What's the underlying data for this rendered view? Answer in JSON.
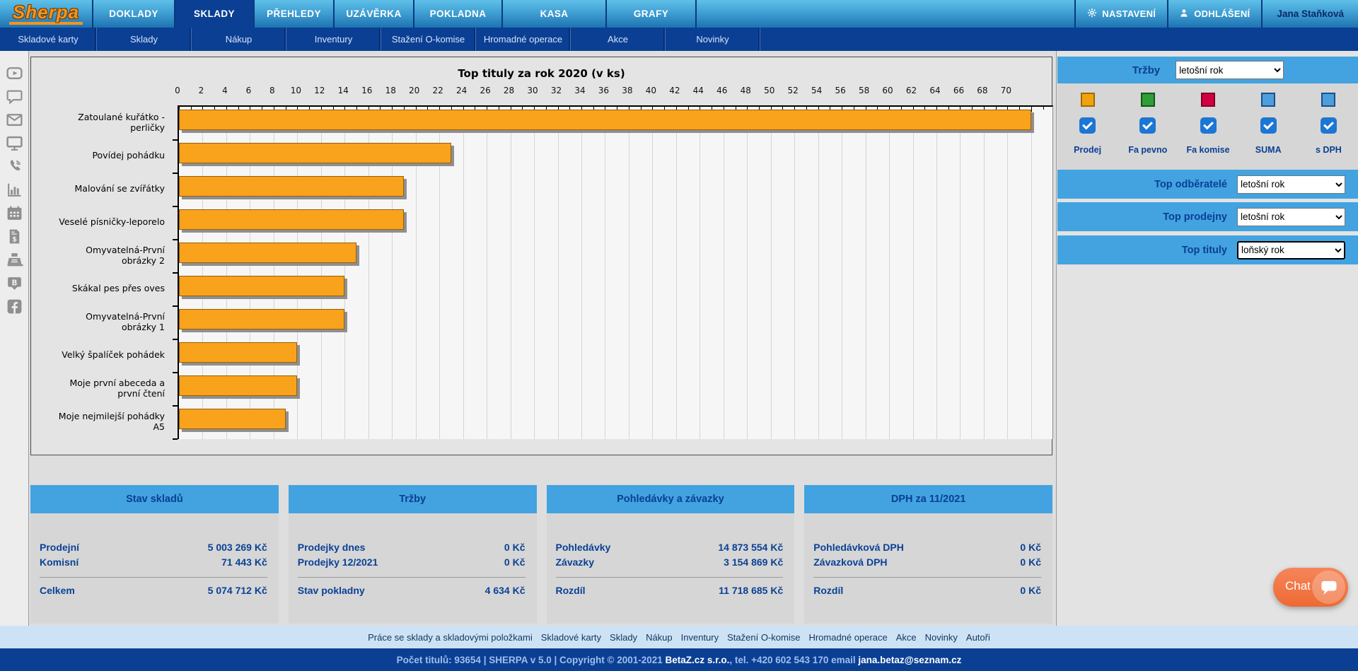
{
  "header": {
    "logo": "Sherpa",
    "tabs": [
      {
        "label": "DOKLADY",
        "active": false
      },
      {
        "label": "SKLADY",
        "active": true
      },
      {
        "label": "PŘEHLEDY",
        "active": false
      },
      {
        "label": "UZÁVĚRKA",
        "active": false
      },
      {
        "label": "POKLADNA",
        "active": false
      },
      {
        "label": "KASA",
        "active": false
      },
      {
        "label": "GRAFY",
        "active": false
      }
    ],
    "actions": {
      "settings": "NASTAVENÍ",
      "logout": "ODHLÁŠENÍ",
      "user": "Jana Staňková"
    }
  },
  "subnav": [
    "Skladové karty",
    "Sklady",
    "Nákup",
    "Inventury",
    "Stažení O-komise",
    "Hromadné operace",
    "Akce",
    "Novinky"
  ],
  "sidebar_icons": [
    "video-icon",
    "comment-icon",
    "mail-icon",
    "monitor-icon",
    "phone-icon",
    "bar-chart-icon",
    "calendar-icon",
    "invoice-icon",
    "cash-register-icon",
    "b-badge-icon",
    "facebook-icon"
  ],
  "chart_data": {
    "type": "bar",
    "orientation": "horizontal",
    "title": "Top tituly za rok 2020 (v ks)",
    "categories": [
      "Zatoulané kuřátko - perličky",
      "Povídej pohádku",
      "Malování se zvířátky",
      "Veselé písničky-leporelo",
      "Omyvatelná-První obrázky 2",
      "Skákal pes přes oves",
      "Omyvatelná-První obrázky 1",
      "Velký špalíček pohádek",
      "Moje první abeceda a první čtení",
      "Moje nejmilejší pohádky A5"
    ],
    "values": [
      72,
      23,
      19,
      19,
      15,
      14,
      14,
      10,
      10,
      9
    ],
    "xlabel": "",
    "ylabel": "",
    "xlim": [
      0,
      73.8
    ],
    "x_tick_step": 2,
    "x_minor_tick_step": 1,
    "x_max_label": 70,
    "grid": true,
    "legend_position": "none",
    "bar_color": "#F9A21B",
    "bar_shadow_color": "#8F8F8F"
  },
  "right_panel": {
    "trzby": {
      "label": "Tržby",
      "selected": "letošní rok"
    },
    "legend": [
      {
        "label": "Prodej",
        "color": "#F2A20E",
        "border": "#9C6A00",
        "checked": true
      },
      {
        "label": "Fa pevno",
        "color": "#2E9E35",
        "border": "#14551A",
        "checked": true
      },
      {
        "label": "Fa komise",
        "color": "#D20041",
        "border": "#7E0026",
        "checked": true
      },
      {
        "label": "SUMA",
        "color": "#4D9EDC",
        "border": "#1B4F8A",
        "checked": true
      },
      {
        "label": "s DPH",
        "color": "#4D9EDC",
        "border": "#1B4F8A",
        "checked": true
      }
    ],
    "checkbox_color": "#1C76D3",
    "dropdowns": [
      {
        "label": "Top odběratelé",
        "selected": "letošní rok",
        "focused": false
      },
      {
        "label": "Top prodejny",
        "selected": "letošní rok",
        "focused": false
      },
      {
        "label": "Top tituly",
        "selected": "loňský rok",
        "focused": true
      }
    ]
  },
  "cards": [
    {
      "title": "Stav skladů",
      "rows": [
        [
          "Prodejní",
          "5 003 269 Kč"
        ],
        [
          "Komisní",
          "71 443 Kč"
        ]
      ],
      "total": [
        "Celkem",
        "5 074 712 Kč"
      ]
    },
    {
      "title": "Tržby",
      "rows": [
        [
          "Prodejky dnes",
          "0 Kč"
        ],
        [
          "Prodejky 12/2021",
          "0 Kč"
        ]
      ],
      "total": [
        "Stav pokladny",
        "4 634 Kč"
      ]
    },
    {
      "title": "Pohledávky a závazky",
      "rows": [
        [
          "Pohledávky",
          "14 873 554 Kč"
        ],
        [
          "Závazky",
          "3 154 869 Kč"
        ]
      ],
      "total": [
        "Rozdíl",
        "11 718 685 Kč"
      ]
    },
    {
      "title": "DPH za 11/2021",
      "rows": [
        [
          "Pohledávková DPH",
          "0 Kč"
        ],
        [
          "Závazková DPH",
          "0 Kč"
        ]
      ],
      "total": [
        "Rozdíl",
        "0 Kč"
      ]
    }
  ],
  "footer": {
    "links_prefix": "Práce se sklady a skladovými položkami",
    "links": [
      "Skladové karty",
      "Sklady",
      "Nákup",
      "Inventury",
      "Stažení O-komise",
      "Hromadné operace",
      "Akce",
      "Novinky",
      "Autoři"
    ],
    "bottom": {
      "part1": "Počet titulů: 93654 | SHERPA v 5.0 | Copyright © 2001-2021 ",
      "brand": "BetaZ.cz s.r.o.",
      "part2": ", tel. +420 602 543 170 email ",
      "email": "jana.betaz@seznam.cz"
    }
  },
  "chat": {
    "label": "Chat"
  },
  "colors": {
    "accent_blue": "#42A3E0",
    "navy": "#0A3F94",
    "orange_bar": "#F9A21B",
    "chat_orange": "#EE6A33",
    "footer_strip": "#CDE3F5"
  }
}
